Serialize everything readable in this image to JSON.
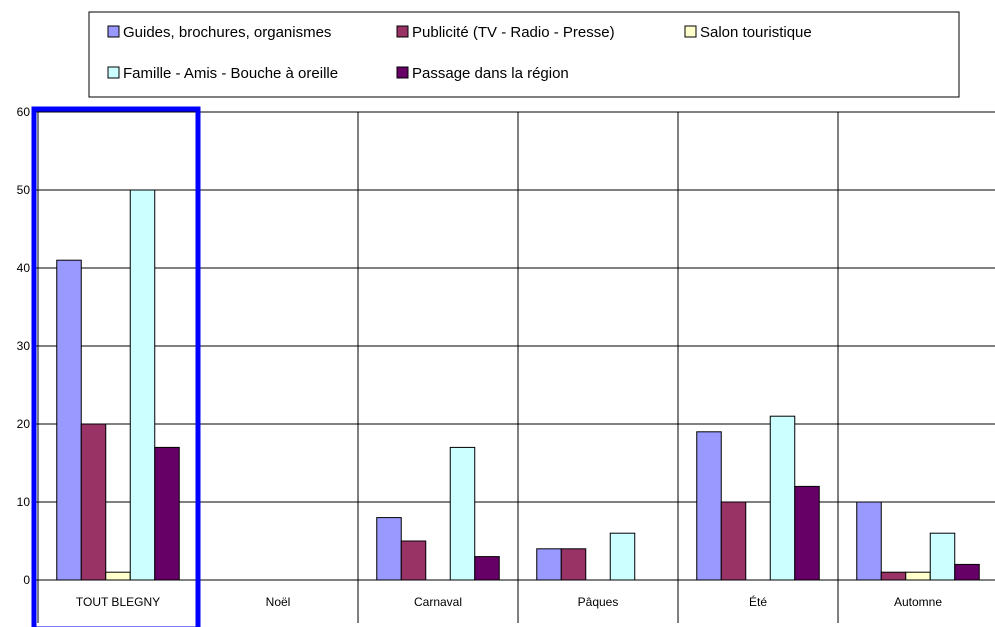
{
  "chart_data": {
    "type": "bar",
    "categories": [
      "TOUT BLEGNY",
      "Noël",
      "Carnaval",
      "Pâques",
      "Été",
      "Automne"
    ],
    "series": [
      {
        "name": "Guides, brochures, organismes",
        "color": "#9999ff",
        "values": [
          41,
          0,
          8,
          4,
          19,
          10
        ]
      },
      {
        "name": "Publicité (TV - Radio - Presse)",
        "color": "#993366",
        "values": [
          20,
          0,
          5,
          4,
          10,
          1
        ]
      },
      {
        "name": "Salon touristique",
        "color": "#ffffcc",
        "values": [
          1,
          0,
          0,
          0,
          0,
          1
        ]
      },
      {
        "name": "Famille - Amis - Bouche à oreille",
        "color": "#ccffff",
        "values": [
          50,
          0,
          17,
          6,
          21,
          6
        ]
      },
      {
        "name": "Passage dans la région",
        "color": "#660066",
        "values": [
          17,
          0,
          3,
          0,
          12,
          2
        ]
      }
    ],
    "yticks": [
      "0",
      "10",
      "20",
      "30",
      "40",
      "50",
      "60"
    ],
    "ylim": [
      0,
      60
    ],
    "grid": true,
    "legend_position": "top",
    "highlight": {
      "category": "TOUT BLEGNY",
      "color": "#0000ff"
    }
  }
}
